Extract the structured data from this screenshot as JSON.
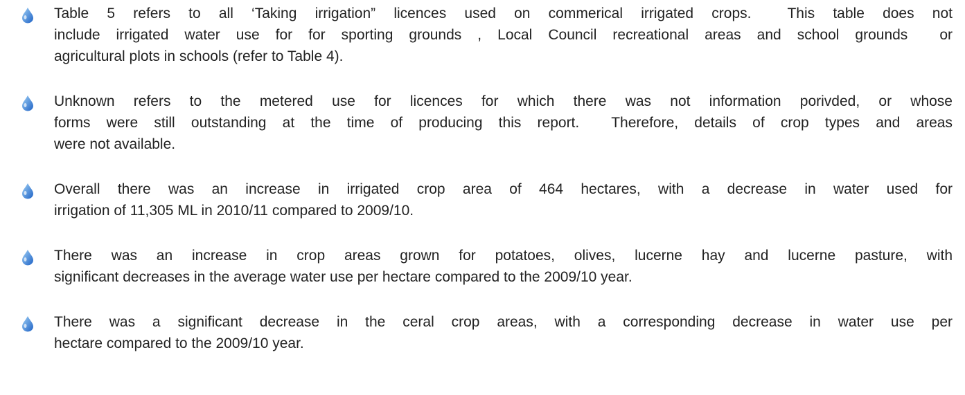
{
  "paragraphs": [
    {
      "lines": [
        "Table 5 refers to all ‘Taking irrigation” licences used on commerical irrigated crops.  This table does not",
        "include irrigated water use for for sporting grounds , Local Council recreational areas and school grounds  or",
        "agricultural plots in schools (refer to Table 4)."
      ]
    },
    {
      "lines": [
        "Unknown refers to the metered use for licences for which there was not information porivded, or whose",
        "forms were still outstanding at the time of producing this report.  Therefore, details of crop types and areas",
        "were not available."
      ]
    },
    {
      "lines": [
        "Overall there was an increase in irrigated crop area of 464 hectares, with a decrease in water used for",
        "irrigation of 11,305 ML in 2010/11 compared to 2009/10."
      ]
    },
    {
      "lines": [
        "There was an increase in crop areas grown for potatoes, olives, lucerne hay and lucerne pasture, with",
        "significant decreases in the average water use per hectare compared to the 2009/10 year."
      ]
    },
    {
      "lines": [
        "There was a significant decrease in the ceral crop areas, with a corresponding decrease in water use per",
        "hectare compared to the 2009/10 year."
      ]
    }
  ]
}
